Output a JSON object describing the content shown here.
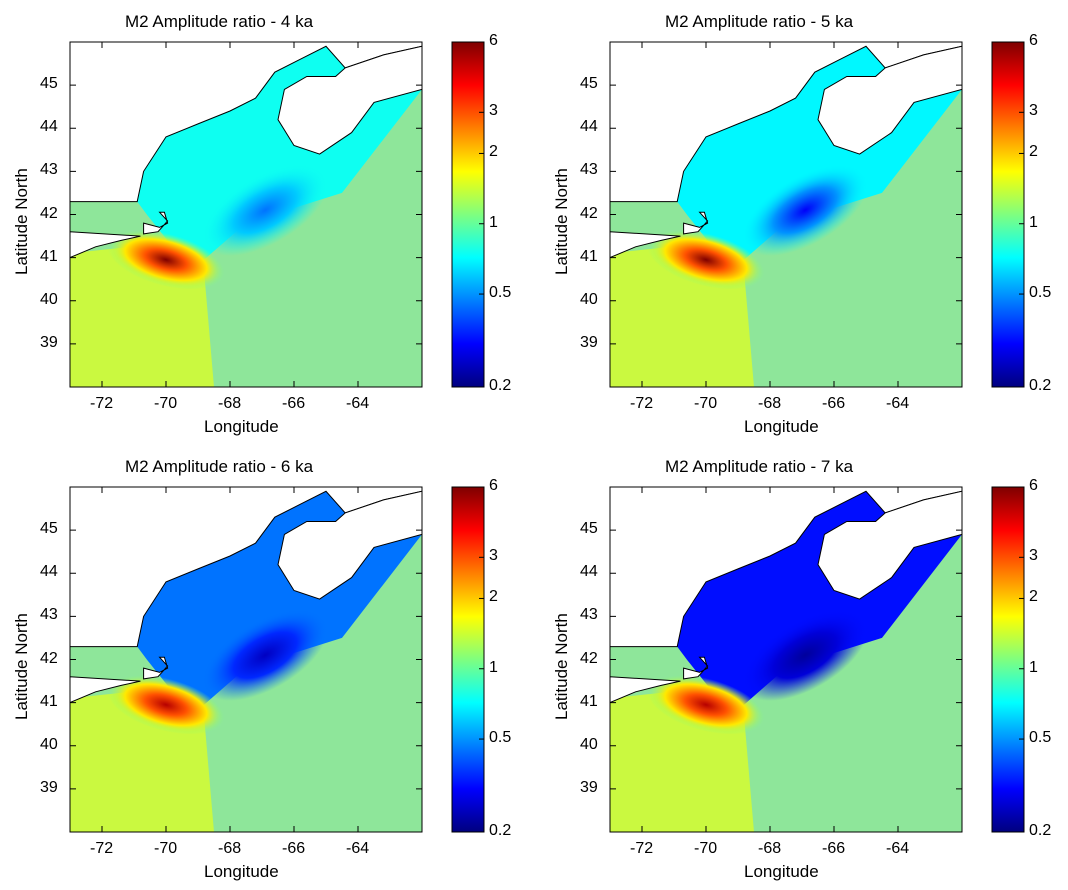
{
  "figure": {
    "panels": [
      {
        "title": "M2 Amplitude ratio -   4 ka",
        "xlabel": "Longitude",
        "ylabel": "Latitude North",
        "xticks": [
          "-72",
          "-70",
          "-68",
          "-66",
          "-64"
        ],
        "yticks": [
          "45",
          "44",
          "43",
          "42",
          "41",
          "40",
          "39"
        ],
        "colorbar_ticks": [
          "6",
          "3",
          "2",
          "1",
          "0.5",
          "0.2"
        ],
        "bay_ratio": 0.75,
        "minimum_ratio": 0.45,
        "maximum_ratio": 6.0
      },
      {
        "title": "M2 Amplitude ratio -   5 ka",
        "xlabel": "Longitude",
        "ylabel": "Latitude North",
        "xticks": [
          "-72",
          "-70",
          "-68",
          "-66",
          "-64"
        ],
        "yticks": [
          "45",
          "44",
          "43",
          "42",
          "41",
          "40",
          "39"
        ],
        "colorbar_ticks": [
          "6",
          "3",
          "2",
          "1",
          "0.5",
          "0.2"
        ],
        "bay_ratio": 0.7,
        "minimum_ratio": 0.3,
        "maximum_ratio": 6.0
      },
      {
        "title": "M2 Amplitude ratio -   6 ka",
        "xlabel": "Longitude",
        "ylabel": "Latitude North",
        "xticks": [
          "-72",
          "-70",
          "-68",
          "-66",
          "-64"
        ],
        "yticks": [
          "45",
          "44",
          "43",
          "42",
          "41",
          "40",
          "39"
        ],
        "colorbar_ticks": [
          "6",
          "3",
          "2",
          "1",
          "0.5",
          "0.2"
        ],
        "bay_ratio": 0.45,
        "minimum_ratio": 0.25,
        "maximum_ratio": 5.0
      },
      {
        "title": "M2 Amplitude ratio -   7 ka",
        "xlabel": "Longitude",
        "ylabel": "Latitude North",
        "xticks": [
          "-72",
          "-70",
          "-68",
          "-66",
          "-64"
        ],
        "yticks": [
          "45",
          "44",
          "43",
          "42",
          "41",
          "40",
          "39"
        ],
        "colorbar_ticks": [
          "6",
          "3",
          "2",
          "1",
          "0.5",
          "0.2"
        ],
        "bay_ratio": 0.32,
        "minimum_ratio": 0.22,
        "maximum_ratio": 5.0
      }
    ],
    "colors": {
      "colormap": [
        "#00007f",
        "#0000ff",
        "#007fff",
        "#00ffff",
        "#7fff7f",
        "#ffff00",
        "#ff7f00",
        "#ff0000",
        "#7f0000"
      ],
      "open_ocean": "#8ee69a",
      "land": "#ffffff",
      "coastline": "#000000"
    }
  }
}
